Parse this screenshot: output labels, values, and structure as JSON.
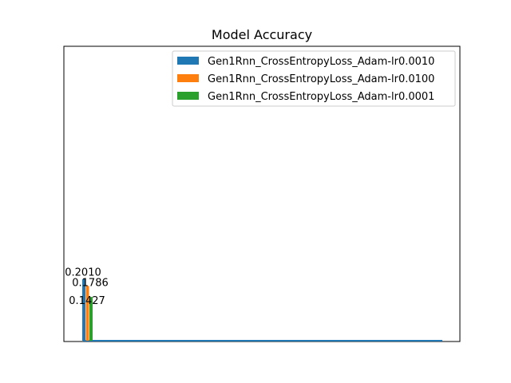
{
  "chart_data": {
    "type": "bar",
    "title": "Model Accuracy",
    "xlabel": "",
    "ylabel": "",
    "ylim": [
      0,
      0.96
    ],
    "grid": false,
    "legend_position": "top-right",
    "series": [
      {
        "name": "Gen1Rnn_CrossEntropyLoss_Adam-lr0.0010",
        "value": 0.201,
        "label": "0.2010",
        "color": "#1f77b4"
      },
      {
        "name": "Gen1Rnn_CrossEntropyLoss_Adam-lr0.0100",
        "value": 0.1786,
        "label": "0.1786",
        "color": "#ff7f0e"
      },
      {
        "name": "Gen1Rnn_CrossEntropyLoss_Adam-lr0.0001",
        "value": 0.1427,
        "label": "0.1427",
        "color": "#2ca02c"
      }
    ]
  }
}
